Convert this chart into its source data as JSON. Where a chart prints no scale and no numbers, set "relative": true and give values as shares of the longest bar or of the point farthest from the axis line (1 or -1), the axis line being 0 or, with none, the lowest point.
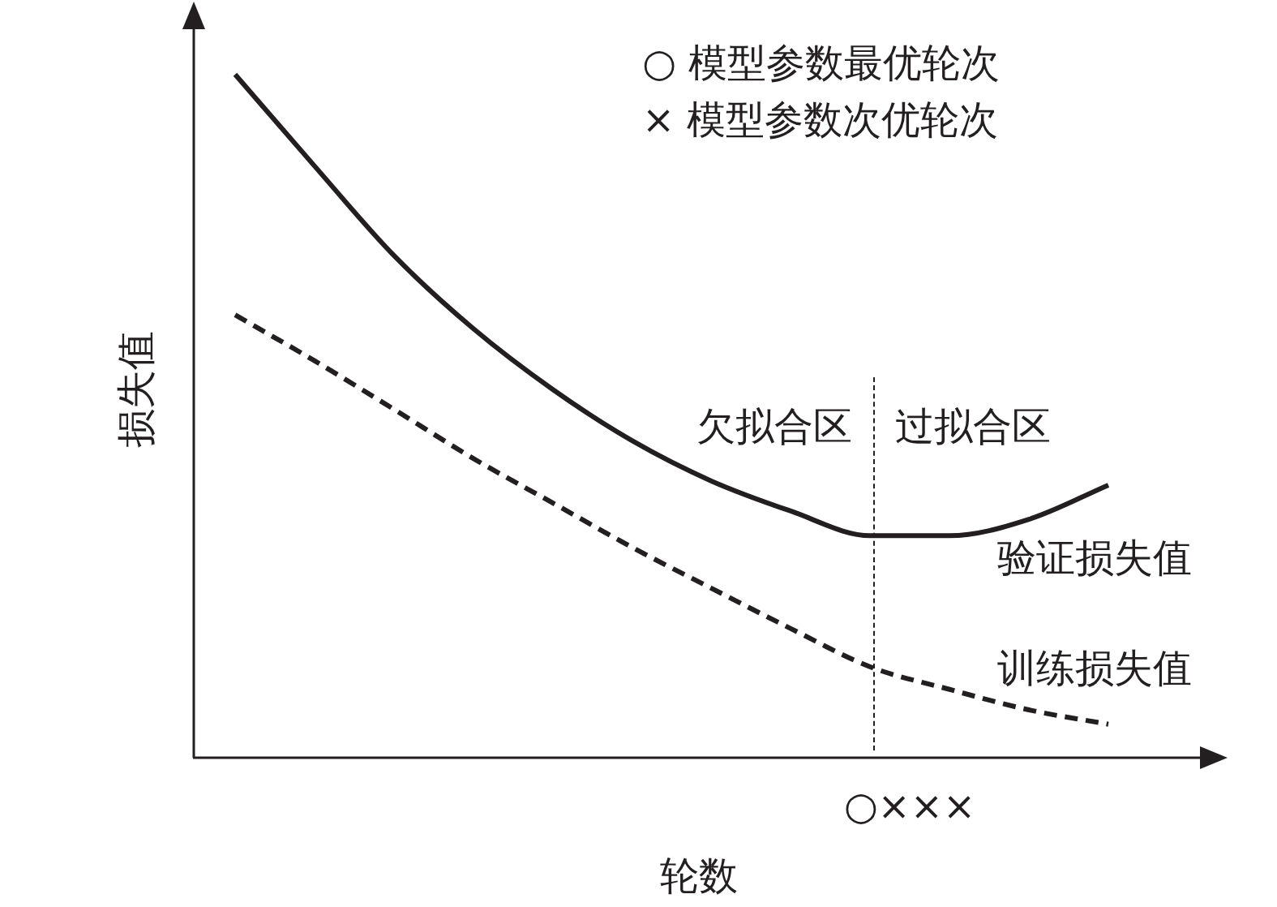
{
  "chart_data": {
    "type": "line",
    "relative": true,
    "xlabel": "轮数",
    "ylabel": "损失值",
    "tick_labels": false,
    "grid": false,
    "legend": false,
    "marker": "none",
    "categories": [
      null,
      null,
      null,
      null,
      null,
      null,
      null,
      null,
      null,
      null,
      null,
      null
    ],
    "series": [
      {
        "name": "验证损失值",
        "color": "#231f20",
        "line_style": "solid",
        "values": [
          1,
          0.866,
          0.735,
          0.628,
          0.539,
          0.464,
          0.405,
          0.361,
          0.325,
          0.325,
          0.349,
          0.399
        ]
      },
      {
        "name": "训练损失值",
        "color": "#231f20",
        "line_style": "dashed",
        "values": [
          0.648,
          0.581,
          0.51,
          0.438,
          0.373,
          0.308,
          0.248,
          0.189,
          0.133,
          0.1,
          0.07,
          0.049
        ]
      }
    ],
    "annotations": [
      "○ 模型参数最优轮次",
      "× 模型参数次优轮次",
      "○×××",
      "欠拟合区",
      "过拟合区"
    ]
  }
}
